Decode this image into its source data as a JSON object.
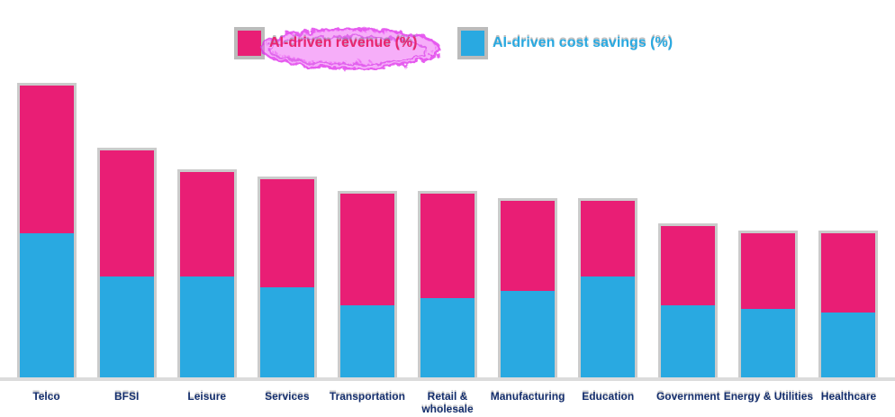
{
  "legend": {
    "items": [
      {
        "label": "AI-driven revenue (%)",
        "color": "#e91e75",
        "annotated": true
      },
      {
        "label": "AI-driven cost savings (%)",
        "color": "#29a9e1",
        "annotated": false
      }
    ]
  },
  "annotation": {
    "type": "scribble-highlight",
    "color": "#e03ae9",
    "target": "AI-driven revenue (%)"
  },
  "chart_data": {
    "type": "bar",
    "stacked": true,
    "orientation": "vertical",
    "title": "",
    "xlabel": "",
    "ylabel": "",
    "categories": [
      "Telco",
      "BFSI",
      "Leisure",
      "Services",
      "Transportation",
      "Retail & wholesale",
      "Manufacturing",
      "Education",
      "Government",
      "Energy & Utilities",
      "Healthcare"
    ],
    "series": [
      {
        "name": "AI-driven revenue (%)",
        "color": "#e91e75",
        "values": [
          20.5,
          17.5,
          14.5,
          15,
          15.5,
          14.5,
          12.5,
          10.5,
          11,
          10.5,
          11
        ]
      },
      {
        "name": "AI-driven cost savings (%)",
        "color": "#29a9e1",
        "values": [
          20,
          14,
          14,
          12.5,
          10,
          11,
          12,
          14,
          10,
          9.5,
          9
        ]
      }
    ],
    "stack_totals": [
      40.5,
      31.5,
      28.5,
      27.5,
      25.5,
      25.5,
      24.5,
      24.5,
      21,
      20,
      20
    ],
    "ylim": [
      0,
      45
    ],
    "y_axis_visible": false,
    "x_axis_visible": true,
    "gridlines": false,
    "legend_position": "top",
    "category_label_color": "#142e6d",
    "baseline_color": "#dcdcdc"
  }
}
